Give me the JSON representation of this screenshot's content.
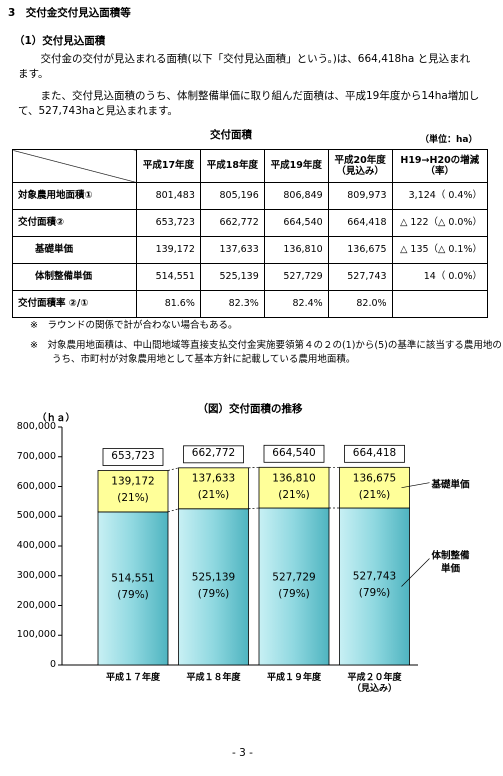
{
  "section_title": "3　交付金交付見込面積等",
  "subsection_title": "（1）交付見込面積",
  "paragraphs": [
    "　交付金の交付が見込まれる面積(以下「交付見込面積」という。)は、664,418ha と見込まれます。",
    "　また、交付見込面積のうち、体制整備単価に取り組んだ面積は、平成19年度から14ha増加して、527,743haと見込まれます。"
  ],
  "table": {
    "caption": "交付面積",
    "unit": "（単位：ha）",
    "header": [
      null,
      "平成17年度",
      "平成18年度",
      "平成19年度",
      "平成20年度\n（見込み）",
      "H19→H20の増減\n（率）"
    ],
    "rows": [
      [
        "対象農用地面積①",
        "801,483",
        "805,196",
        "806,849",
        "809,973",
        "3,124（ 0.4%）"
      ],
      [
        "交付面積②",
        "653,723",
        "662,772",
        "664,540",
        "664,418",
        "△ 122（△ 0.0%）"
      ],
      [
        "基礎単価",
        "139,172",
        "137,633",
        "136,810",
        "136,675",
        "△ 135（△ 0.1%）"
      ],
      [
        "体制整備単価",
        "514,551",
        "525,139",
        "527,729",
        "527,743",
        "14（ 0.0%）"
      ],
      [
        "交付面積率 ②/①",
        "81.6%",
        "82.3%",
        "82.4%",
        "82.0%",
        null
      ]
    ]
  },
  "notes": [
    "※　ラウンドの関係で計が合わない場合もある。",
    "※　対象農用地面積は、中山間地域等直接支払交付金実施要領第４の２の(1)から(5)の基準に該当する農用地のうち、市町村が対象農用地として基本方針に記載している農用地面積。"
  ],
  "chart_data": {
    "type": "stacked_bar",
    "title": "（図）交付面積の推移",
    "y_unit": "（ｈａ）",
    "categories": [
      "平成１７年度",
      "平成１８年度",
      "平成１９年度",
      "平成２０年度\n（見込み）"
    ],
    "series": [
      {
        "name": "体制整備\n単価",
        "color": "#8fd8e0",
        "values": [
          514551,
          525139,
          527729,
          527743
        ],
        "value_labels": [
          "514,551",
          "525,139",
          "527,729",
          "527,743"
        ],
        "percent_labels": [
          "(79%)",
          "(79%)",
          "(79%)",
          "(79%)"
        ]
      },
      {
        "name": "基礎単価",
        "color": "#ffff99",
        "values": [
          139172,
          137633,
          136810,
          136675
        ],
        "value_labels": [
          "139,172",
          "137,633",
          "136,810",
          "136,675"
        ],
        "percent_labels": [
          "(21%)",
          "(21%)",
          "(21%)",
          "(21%)"
        ]
      }
    ],
    "totals": [
      653723,
      662772,
      664540,
      664418
    ],
    "total_labels": [
      "653,723",
      "662,772",
      "664,540",
      "664,418"
    ],
    "ylim": [
      0,
      800000
    ],
    "yticks": [
      0,
      {
        "value": 100000,
        "label": "100,000"
      },
      {
        "value": 200000,
        "label": "200,000"
      },
      {
        "value": 300000,
        "label": "300,000"
      },
      {
        "value": 400000,
        "label": "400,000"
      },
      {
        "value": 500000,
        "label": "500,000"
      },
      {
        "value": 600000,
        "label": "600,000"
      },
      {
        "value": 700000,
        "label": "700,000"
      },
      {
        "value": 800000,
        "label": "800,000"
      }
    ]
  },
  "page_number": "- 3 -"
}
